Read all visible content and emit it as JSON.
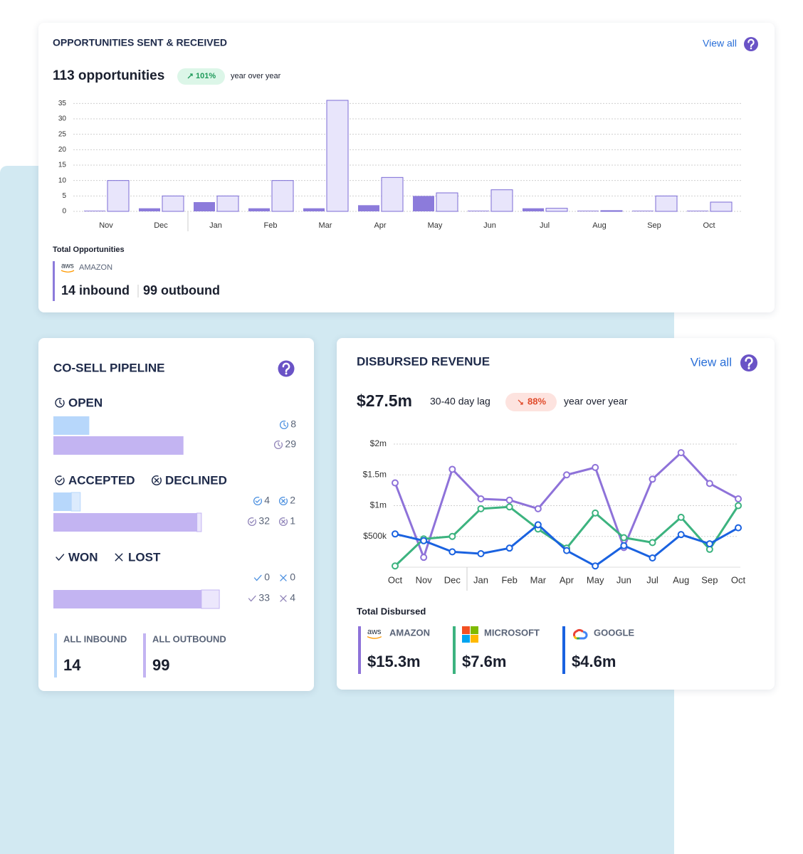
{
  "opportunities": {
    "title": "OPPORTUNITIES SENT & RECEIVED",
    "view_all": "View all",
    "total": "113 opportunities",
    "change": "101%",
    "change_note": "year over year",
    "footer_label": "Total Opportunities",
    "partner_logo": "aws",
    "partner": "AMAZON",
    "inbound": "14 inbound",
    "outbound": "99 outbound"
  },
  "pipeline": {
    "title": "CO-SELL PIPELINE",
    "groups": [
      {
        "labels": [
          "OPEN"
        ],
        "inbound": [
          8
        ],
        "outbound": [
          29
        ]
      },
      {
        "labels": [
          "ACCEPTED",
          "DECLINED"
        ],
        "inbound": [
          4,
          2
        ],
        "outbound": [
          32,
          1
        ]
      },
      {
        "labels": [
          "WON",
          "LOST"
        ],
        "inbound": [
          0,
          0
        ],
        "outbound": [
          33,
          4
        ]
      }
    ],
    "totals": [
      {
        "label": "ALL INBOUND",
        "value": 14
      },
      {
        "label": "ALL OUTBOUND",
        "value": 99
      }
    ]
  },
  "revenue": {
    "title": "DISBURSED REVENUE",
    "view_all": "View all",
    "total": "$27.5m",
    "lag": "30-40 day lag",
    "change": "88%",
    "change_note": "year over year",
    "footer_label": "Total Disbursed",
    "totals": [
      {
        "logo": "aws",
        "value": "$15.3m"
      },
      {
        "value": "$7.6m"
      },
      {
        "value": "$4.6m"
      }
    ]
  },
  "chart_data": [
    {
      "type": "bar",
      "categories": [
        "Nov",
        "Dec",
        "Jan",
        "Feb",
        "Mar",
        "Apr",
        "May",
        "Jun",
        "Jul",
        "Aug",
        "Sep",
        "Oct"
      ],
      "series": [
        {
          "color": "#8c7bdb",
          "values": [
            0,
            1,
            3,
            1,
            1,
            2,
            5,
            0,
            1,
            0,
            0,
            0
          ]
        },
        {
          "color": "#e8e5fb",
          "values": [
            10,
            5,
            5,
            10,
            36,
            11,
            6,
            7,
            1,
            0,
            5,
            3
          ]
        }
      ],
      "ylim": [
        0,
        36
      ],
      "yticks": [
        0,
        5,
        10,
        15,
        20,
        25,
        30,
        35
      ],
      "grid": true
    },
    {
      "type": "line",
      "categories": [
        "Oct",
        "Nov",
        "Dec",
        "Jan",
        "Feb",
        "Mar",
        "Apr",
        "May",
        "Jun",
        "Jul",
        "Aug",
        "Sep",
        "Oct"
      ],
      "series": [
        {
          "name": "AMAZON",
          "color": "#8e72d9",
          "values": [
            1370000,
            160000,
            1590000,
            1110000,
            1090000,
            950000,
            1500000,
            1620000,
            320000,
            1430000,
            1860000,
            1360000,
            1110000
          ]
        },
        {
          "name": "MICROSOFT",
          "color": "#3cb37f",
          "values": [
            20000,
            460000,
            500000,
            950000,
            980000,
            620000,
            310000,
            880000,
            480000,
            400000,
            810000,
            290000,
            1000000
          ]
        },
        {
          "name": "GOOGLE",
          "color": "#1a62e0",
          "values": [
            540000,
            430000,
            250000,
            220000,
            310000,
            690000,
            270000,
            20000,
            350000,
            150000,
            530000,
            380000,
            640000
          ]
        }
      ],
      "ylim": [
        0,
        2000000
      ],
      "yticks": [
        {
          "value": 500000,
          "label": "$500k"
        },
        {
          "value": 1000000,
          "label": "$1m"
        },
        {
          "value": 1500000,
          "label": "$1.5m"
        },
        {
          "value": 2000000,
          "label": "$2m"
        }
      ],
      "grid": true
    }
  ]
}
